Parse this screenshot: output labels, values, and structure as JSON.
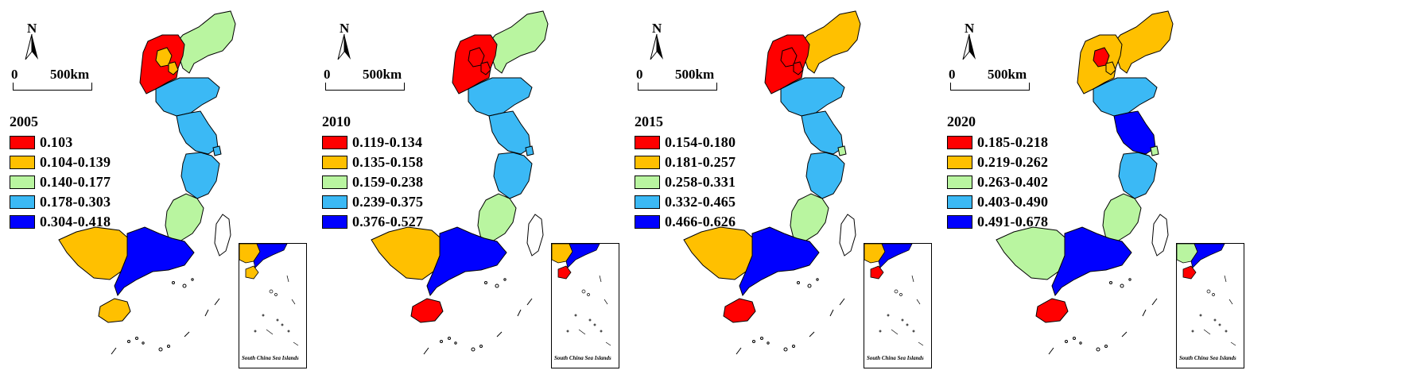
{
  "panels": [
    {
      "year": "2005",
      "north": "N",
      "scale_zero": "0",
      "scale_distance": "500km",
      "inset_label": "South China Sea Islands",
      "legend": [
        {
          "label": "0.103",
          "color": "#ff0000"
        },
        {
          "label": "0.104-0.139",
          "color": "#ffc000"
        },
        {
          "label": "0.140-0.177",
          "color": "#b9f5a0"
        },
        {
          "label": "0.178-0.303",
          "color": "#3bb9f5"
        },
        {
          "label": "0.304-0.418",
          "color": "#0000ff"
        }
      ],
      "region_classes": {
        "liaoning": 2,
        "hebei": 0,
        "beijing": 1,
        "tianjin": 1,
        "shandong": 3,
        "jiangsu": 3,
        "shanghai": 3,
        "zhejiang": 3,
        "fujian": 2,
        "guangxi": 1,
        "guangdong": 4,
        "hainan": 1
      }
    },
    {
      "year": "2010",
      "north": "N",
      "scale_zero": "0",
      "scale_distance": "500km",
      "inset_label": "South China Sea Islands",
      "legend": [
        {
          "label": "0.119-0.134",
          "color": "#ff0000"
        },
        {
          "label": "0.135-0.158",
          "color": "#ffc000"
        },
        {
          "label": "0.159-0.238",
          "color": "#b9f5a0"
        },
        {
          "label": "0.239-0.375",
          "color": "#3bb9f5"
        },
        {
          "label": "0.376-0.527",
          "color": "#0000ff"
        }
      ],
      "region_classes": {
        "liaoning": 2,
        "hebei": 0,
        "beijing": 0,
        "tianjin": 0,
        "shandong": 3,
        "jiangsu": 3,
        "shanghai": 3,
        "zhejiang": 3,
        "fujian": 2,
        "guangxi": 1,
        "guangdong": 4,
        "hainan": 0
      }
    },
    {
      "year": "2015",
      "north": "N",
      "scale_zero": "0",
      "scale_distance": "500km",
      "inset_label": "South China Sea Islands",
      "legend": [
        {
          "label": "0.154-0.180",
          "color": "#ff0000"
        },
        {
          "label": "0.181-0.257",
          "color": "#ffc000"
        },
        {
          "label": "0.258-0.331",
          "color": "#b9f5a0"
        },
        {
          "label": "0.332-0.465",
          "color": "#3bb9f5"
        },
        {
          "label": "0.466-0.626",
          "color": "#0000ff"
        }
      ],
      "region_classes": {
        "liaoning": 1,
        "hebei": 0,
        "beijing": 0,
        "tianjin": 0,
        "shandong": 3,
        "jiangsu": 3,
        "shanghai": 2,
        "zhejiang": 3,
        "fujian": 2,
        "guangxi": 1,
        "guangdong": 4,
        "hainan": 0
      }
    },
    {
      "year": "2020",
      "north": "N",
      "scale_zero": "0",
      "scale_distance": "500km",
      "inset_label": "South China Sea Islands",
      "legend": [
        {
          "label": "0.185-0.218",
          "color": "#ff0000"
        },
        {
          "label": "0.219-0.262",
          "color": "#ffc000"
        },
        {
          "label": "0.263-0.402",
          "color": "#b9f5a0"
        },
        {
          "label": "0.403-0.490",
          "color": "#3bb9f5"
        },
        {
          "label": "0.491-0.678",
          "color": "#0000ff"
        }
      ],
      "region_classes": {
        "liaoning": 1,
        "hebei": 1,
        "beijing": 0,
        "tianjin": 1,
        "shandong": 3,
        "jiangsu": 4,
        "shanghai": 2,
        "zhejiang": 3,
        "fujian": 2,
        "guangxi": 2,
        "guangdong": 4,
        "hainan": 0
      }
    }
  ]
}
